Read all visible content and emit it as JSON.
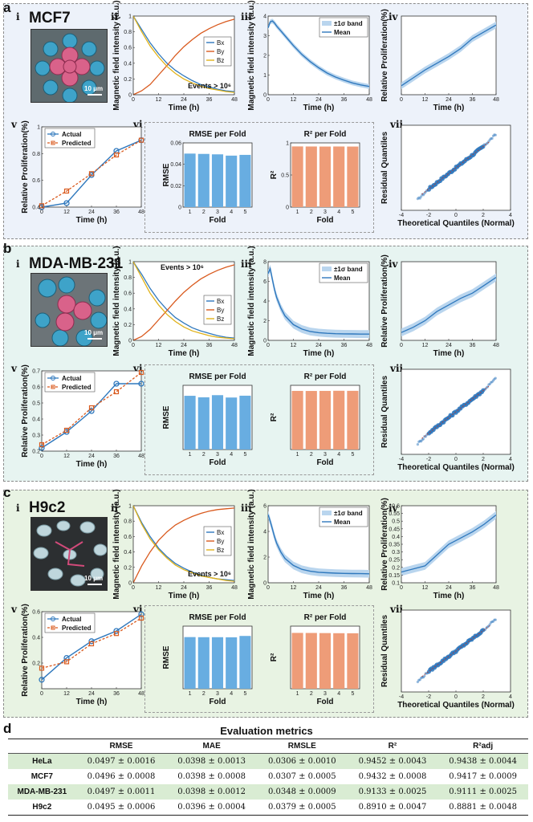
{
  "colors": {
    "blue": "#2f78bd",
    "orange": "#d95a1e",
    "yellow": "#e0b21a",
    "bar_blue": "#68ade1",
    "bar_orange": "#ee9c78",
    "band": "#b9d5ee",
    "panel_a": "#edf2fa",
    "panel_b": "#e7f4f1",
    "panel_c": "#e8f3e3"
  },
  "common": {
    "sub_i": "i",
    "sub_ii": "ii",
    "sub_iii": "iii",
    "sub_iv": "iv",
    "sub_v": "v",
    "sub_vi": "vi",
    "sub_vii": "vii",
    "mag_ylabel": "Magnetic field intensity (a.u.)",
    "prolif_ylabel": "Relative Proliferation(%)",
    "time_xlabel": "Time (h)",
    "bx": "Bx",
    "by": "By",
    "bz": "Bz",
    "band_legend": "±1σ band",
    "mean_legend": "Mean",
    "actual_legend": "Actual",
    "predicted_legend": "Predicted",
    "rmse_title": "RMSE per Fold",
    "r2_title": "R² per Fold",
    "rmse_ylabel": "RMSE",
    "r2_ylabel": "R²",
    "fold_xlabel": "Fold",
    "resid_ylabel": "Residual Quantiles",
    "theo_xlabel": "Theoretical Quantiles (Normal)",
    "scale": "10 μm"
  },
  "panels": [
    {
      "letter": "a",
      "cell_line": "MCF7",
      "events": "Events > 10⁶"
    },
    {
      "letter": "b",
      "cell_line": "MDA-MB-231",
      "events": "Events > 10⁶"
    },
    {
      "letter": "c",
      "cell_line": "H9c2",
      "events": "Events > 10⁶"
    }
  ],
  "chart_data": [
    {
      "panel": "a",
      "id": "a-ii",
      "type": "line",
      "x": [
        0,
        4,
        8,
        12,
        16,
        20,
        24,
        28,
        32,
        36,
        40,
        44,
        48
      ],
      "xlim": [
        0,
        48
      ],
      "ylim": [
        0,
        1
      ],
      "xticks": [
        0,
        12,
        24,
        36,
        48
      ],
      "yticks": [
        0,
        0.2,
        0.4,
        0.6,
        0.8,
        1
      ],
      "series": [
        {
          "name": "Bx",
          "values": [
            1.0,
            0.83,
            0.66,
            0.52,
            0.4,
            0.31,
            0.24,
            0.18,
            0.13,
            0.1,
            0.07,
            0.05,
            0.04
          ]
        },
        {
          "name": "By",
          "values": [
            0.0,
            0.05,
            0.13,
            0.25,
            0.37,
            0.5,
            0.61,
            0.7,
            0.78,
            0.84,
            0.89,
            0.93,
            0.96
          ]
        },
        {
          "name": "Bz",
          "values": [
            1.0,
            0.8,
            0.62,
            0.48,
            0.36,
            0.27,
            0.2,
            0.15,
            0.11,
            0.08,
            0.06,
            0.04,
            0.03
          ]
        }
      ]
    },
    {
      "panel": "a",
      "id": "a-iii",
      "type": "line",
      "x": [
        0,
        1,
        2,
        3,
        4,
        6,
        8,
        12,
        16,
        20,
        24,
        28,
        32,
        36,
        40,
        44,
        48
      ],
      "xlim": [
        0,
        48
      ],
      "ylim": [
        0,
        4
      ],
      "xticks": [
        0,
        12,
        24,
        36,
        48
      ],
      "yticks": [
        0,
        1,
        2,
        3,
        4
      ],
      "series": [
        {
          "name": "Mean",
          "values": [
            3.4,
            3.7,
            3.75,
            3.65,
            3.5,
            3.25,
            3.0,
            2.5,
            2.05,
            1.68,
            1.37,
            1.1,
            0.9,
            0.74,
            0.6,
            0.5,
            0.42
          ]
        }
      ],
      "band": 0.12
    },
    {
      "panel": "a",
      "id": "a-iv",
      "type": "line",
      "x": [
        0,
        6,
        12,
        18,
        24,
        30,
        36,
        42,
        48
      ],
      "xlim": [
        0,
        48
      ],
      "ylim": [
        0.3,
        1.0
      ],
      "xticks": [
        0,
        12,
        24,
        36,
        48
      ],
      "yticks": [],
      "series": [
        {
          "name": "Mean",
          "values": [
            0.38,
            0.45,
            0.52,
            0.58,
            0.64,
            0.71,
            0.8,
            0.86,
            0.92
          ]
        }
      ],
      "band": 0.03
    },
    {
      "panel": "a",
      "id": "a-v",
      "type": "line",
      "x": [
        0,
        12,
        24,
        36,
        48
      ],
      "xlim": [
        0,
        48
      ],
      "ylim": [
        0.4,
        1.0
      ],
      "xticks": [
        0,
        12,
        24,
        36,
        48
      ],
      "yticks": [
        0.4,
        0.6,
        0.8,
        1.0
      ],
      "series": [
        {
          "name": "Actual",
          "values": [
            0.4,
            0.43,
            0.64,
            0.82,
            0.9
          ]
        },
        {
          "name": "Predicted",
          "values": [
            0.41,
            0.52,
            0.65,
            0.79,
            0.9
          ]
        }
      ]
    },
    {
      "panel": "a",
      "id": "a-vi-rmse",
      "type": "bar",
      "categories": [
        "1",
        "2",
        "3",
        "4",
        "5"
      ],
      "values": [
        0.05,
        0.0497,
        0.0493,
        0.0481,
        0.0488
      ],
      "ylim": [
        0,
        0.06
      ],
      "yticks": [
        0,
        0.02,
        0.04,
        0.06
      ]
    },
    {
      "panel": "a",
      "id": "a-vi-r2",
      "type": "bar",
      "categories": [
        "1",
        "2",
        "3",
        "4",
        "5"
      ],
      "values": [
        0.945,
        0.944,
        0.943,
        0.944,
        0.943
      ],
      "ylim": [
        0,
        1
      ],
      "yticks": [
        0,
        0.5,
        1
      ]
    },
    {
      "panel": "a",
      "id": "a-vii",
      "type": "scatter",
      "xlim": [
        -4,
        4
      ],
      "ylim": [
        -0.2,
        0.2
      ],
      "xticks": [
        -4,
        -2,
        0,
        2,
        4
      ],
      "yticks": [],
      "x_range": [
        -2.8,
        2.9
      ],
      "slope": 0.05
    },
    {
      "panel": "b",
      "id": "b-ii",
      "type": "line",
      "x": [
        0,
        4,
        8,
        12,
        16,
        20,
        24,
        28,
        32,
        36,
        40,
        44,
        48
      ],
      "xlim": [
        0,
        48
      ],
      "ylim": [
        0,
        1
      ],
      "xticks": [
        0,
        12,
        24,
        36,
        48
      ],
      "yticks": [
        0,
        0.2,
        0.4,
        0.6,
        0.8,
        1
      ],
      "series": [
        {
          "name": "Bx",
          "values": [
            1.0,
            0.84,
            0.66,
            0.51,
            0.39,
            0.29,
            0.22,
            0.16,
            0.12,
            0.09,
            0.06,
            0.04,
            0.03
          ]
        },
        {
          "name": "By",
          "values": [
            0.0,
            0.05,
            0.14,
            0.26,
            0.38,
            0.5,
            0.61,
            0.7,
            0.78,
            0.84,
            0.89,
            0.93,
            0.96
          ]
        },
        {
          "name": "Bz",
          "values": [
            1.0,
            0.8,
            0.6,
            0.45,
            0.33,
            0.24,
            0.17,
            0.12,
            0.09,
            0.06,
            0.04,
            0.03,
            0.02
          ]
        }
      ]
    },
    {
      "panel": "b",
      "id": "b-iii",
      "type": "line",
      "x": [
        0,
        1,
        2,
        3,
        4,
        6,
        8,
        12,
        16,
        20,
        24,
        28,
        32,
        36,
        40,
        44,
        48
      ],
      "xlim": [
        0,
        48
      ],
      "ylim": [
        0,
        8
      ],
      "xticks": [
        0,
        12,
        24,
        36,
        48
      ],
      "yticks": [
        0,
        2,
        4,
        6,
        8
      ],
      "series": [
        {
          "name": "Mean",
          "values": [
            6.8,
            7.3,
            6.2,
            5.2,
            4.4,
            3.3,
            2.5,
            1.6,
            1.15,
            0.9,
            0.78,
            0.72,
            0.68,
            0.66,
            0.65,
            0.64,
            0.64
          ]
        }
      ],
      "band": 0.4
    },
    {
      "panel": "b",
      "id": "b-iv",
      "type": "line",
      "x": [
        0,
        6,
        12,
        18,
        24,
        30,
        36,
        42,
        48
      ],
      "xlim": [
        0,
        48
      ],
      "ylim": [
        0.2,
        0.8
      ],
      "xticks": [
        0,
        12,
        24,
        36,
        48
      ],
      "yticks": [],
      "series": [
        {
          "name": "Mean",
          "values": [
            0.26,
            0.3,
            0.35,
            0.42,
            0.47,
            0.52,
            0.56,
            0.62,
            0.68
          ]
        }
      ],
      "band": 0.03
    },
    {
      "panel": "b",
      "id": "b-v",
      "type": "line",
      "x": [
        0,
        12,
        24,
        36,
        48
      ],
      "xlim": [
        0,
        48
      ],
      "ylim": [
        0.2,
        0.7
      ],
      "xticks": [
        0,
        12,
        24,
        36,
        48
      ],
      "yticks": [
        0.2,
        0.3,
        0.4,
        0.5,
        0.6,
        0.7
      ],
      "series": [
        {
          "name": "Actual",
          "values": [
            0.22,
            0.32,
            0.45,
            0.62,
            0.62
          ]
        },
        {
          "name": "Predicted",
          "values": [
            0.24,
            0.33,
            0.47,
            0.57,
            0.69
          ]
        }
      ]
    },
    {
      "panel": "b",
      "id": "b-vi-rmse",
      "type": "bar",
      "categories": [
        "1",
        "2",
        "3",
        "4",
        "5"
      ],
      "values": [
        0.0502,
        0.0488,
        0.0508,
        0.0486,
        0.0503
      ],
      "ylim": [
        0,
        0.06
      ],
      "yticks": []
    },
    {
      "panel": "b",
      "id": "b-vi-r2",
      "type": "bar",
      "categories": [
        "1",
        "2",
        "3",
        "4",
        "5"
      ],
      "values": [
        0.913,
        0.912,
        0.913,
        0.915,
        0.914
      ],
      "ylim": [
        0,
        1
      ],
      "yticks": []
    },
    {
      "panel": "b",
      "id": "b-vii",
      "type": "scatter",
      "xlim": [
        -4,
        4
      ],
      "ylim": [
        -0.2,
        0.2
      ],
      "xticks": [
        -4,
        -2,
        0,
        2,
        4
      ],
      "yticks": [],
      "x_range": [
        -2.8,
        2.9
      ],
      "slope": 0.05
    },
    {
      "panel": "c",
      "id": "c-ii",
      "type": "line",
      "x": [
        0,
        4,
        8,
        12,
        16,
        20,
        24,
        28,
        32,
        36,
        40,
        44,
        48
      ],
      "xlim": [
        0,
        48
      ],
      "ylim": [
        0,
        1
      ],
      "xticks": [
        0,
        12,
        24,
        36,
        48
      ],
      "yticks": [
        0,
        0.2,
        0.4,
        0.6,
        0.8,
        1
      ],
      "series": [
        {
          "name": "Bx",
          "values": [
            1.0,
            0.78,
            0.6,
            0.45,
            0.34,
            0.25,
            0.19,
            0.14,
            0.1,
            0.07,
            0.05,
            0.04,
            0.03
          ]
        },
        {
          "name": "By",
          "values": [
            0.0,
            0.22,
            0.4,
            0.55,
            0.66,
            0.75,
            0.81,
            0.86,
            0.9,
            0.93,
            0.95,
            0.96,
            0.97
          ]
        },
        {
          "name": "Bz",
          "values": [
            1.0,
            0.76,
            0.57,
            0.43,
            0.32,
            0.23,
            0.17,
            0.13,
            0.09,
            0.07,
            0.05,
            0.03,
            0.02
          ]
        }
      ]
    },
    {
      "panel": "c",
      "id": "c-iii",
      "type": "line",
      "x": [
        0,
        1,
        2,
        3,
        4,
        6,
        8,
        12,
        16,
        20,
        24,
        28,
        32,
        36,
        40,
        44,
        48
      ],
      "xlim": [
        0,
        48
      ],
      "ylim": [
        0,
        6
      ],
      "xticks": [
        0,
        12,
        24,
        36,
        48
      ],
      "yticks": [
        0,
        2,
        4,
        6
      ],
      "series": [
        {
          "name": "Mean",
          "values": [
            5.3,
            4.8,
            4.2,
            3.6,
            3.1,
            2.4,
            1.9,
            1.35,
            1.05,
            0.9,
            0.82,
            0.78,
            0.75,
            0.73,
            0.72,
            0.71,
            0.7
          ]
        }
      ],
      "band": 0.3
    },
    {
      "panel": "c",
      "id": "c-iv",
      "type": "line",
      "x": [
        0,
        6,
        12,
        18,
        24,
        30,
        36,
        42,
        48
      ],
      "xlim": [
        0,
        48
      ],
      "ylim": [
        0.1,
        0.6
      ],
      "xticks": [
        0,
        12,
        24,
        36,
        48
      ],
      "yticks": [
        0.1,
        0.15,
        0.2,
        0.25,
        0.3,
        0.35,
        0.4,
        0.45,
        0.5,
        0.55,
        0.6
      ],
      "series": [
        {
          "name": "Mean",
          "values": [
            0.17,
            0.19,
            0.21,
            0.28,
            0.35,
            0.39,
            0.43,
            0.48,
            0.54
          ]
        }
      ],
      "band": 0.025
    },
    {
      "panel": "c",
      "id": "c-v",
      "type": "line",
      "x": [
        0,
        12,
        24,
        36,
        48
      ],
      "xlim": [
        0,
        48
      ],
      "ylim": [
        0,
        0.6
      ],
      "xticks": [
        0,
        12,
        24,
        36,
        48
      ],
      "yticks": [
        0.2,
        0.4,
        0.6
      ],
      "series": [
        {
          "name": "Actual",
          "values": [
            0.07,
            0.24,
            0.37,
            0.45,
            0.58
          ]
        },
        {
          "name": "Predicted",
          "values": [
            0.16,
            0.21,
            0.35,
            0.43,
            0.55
          ]
        }
      ]
    },
    {
      "panel": "c",
      "id": "c-vi-rmse",
      "type": "bar",
      "categories": [
        "1",
        "2",
        "3",
        "4",
        "5"
      ],
      "values": [
        0.0495,
        0.0494,
        0.0494,
        0.0493,
        0.0506
      ],
      "ylim": [
        0,
        0.06
      ],
      "yticks": []
    },
    {
      "panel": "c",
      "id": "c-vi-r2",
      "type": "bar",
      "categories": [
        "1",
        "2",
        "3",
        "4",
        "5"
      ],
      "values": [
        0.892,
        0.891,
        0.889,
        0.887,
        0.886
      ],
      "ylim": [
        0,
        1
      ],
      "yticks": []
    },
    {
      "panel": "c",
      "id": "c-vii",
      "type": "scatter",
      "xlim": [
        -4,
        4
      ],
      "ylim": [
        -0.2,
        0.2
      ],
      "xticks": [
        -4,
        -2,
        0,
        2,
        4
      ],
      "yticks": [],
      "x_range": [
        -2.8,
        2.9
      ],
      "slope": 0.05
    }
  ],
  "table": {
    "label": "d",
    "title": "Evaluation metrics",
    "columns": [
      "",
      "RMSE",
      "MAE",
      "RMSLE",
      "R²",
      "R²adj"
    ],
    "rows": [
      {
        "name": "HeLa",
        "values": [
          "0.0497 ± 0.0016",
          "0.0398 ± 0.0013",
          "0.0306 ± 0.0010",
          "0.9452 ± 0.0043",
          "0.9438 ± 0.0044"
        ]
      },
      {
        "name": "MCF7",
        "values": [
          "0.0496 ± 0.0008",
          "0.0398 ± 0.0008",
          "0.0307 ± 0.0005",
          "0.9432 ± 0.0008",
          "0.9417 ± 0.0009"
        ]
      },
      {
        "name": "MDA-MB-231",
        "values": [
          "0.0497 ± 0.0011",
          "0.0398 ± 0.0012",
          "0.0348 ± 0.0009",
          "0.9133 ± 0.0025",
          "0.9111 ± 0.0025"
        ]
      },
      {
        "name": "H9c2",
        "values": [
          "0.0495 ± 0.0006",
          "0.0396 ± 0.0004",
          "0.0379 ± 0.0005",
          "0.8910 ± 0.0047",
          "0.8881 ± 0.0048"
        ]
      }
    ]
  }
}
